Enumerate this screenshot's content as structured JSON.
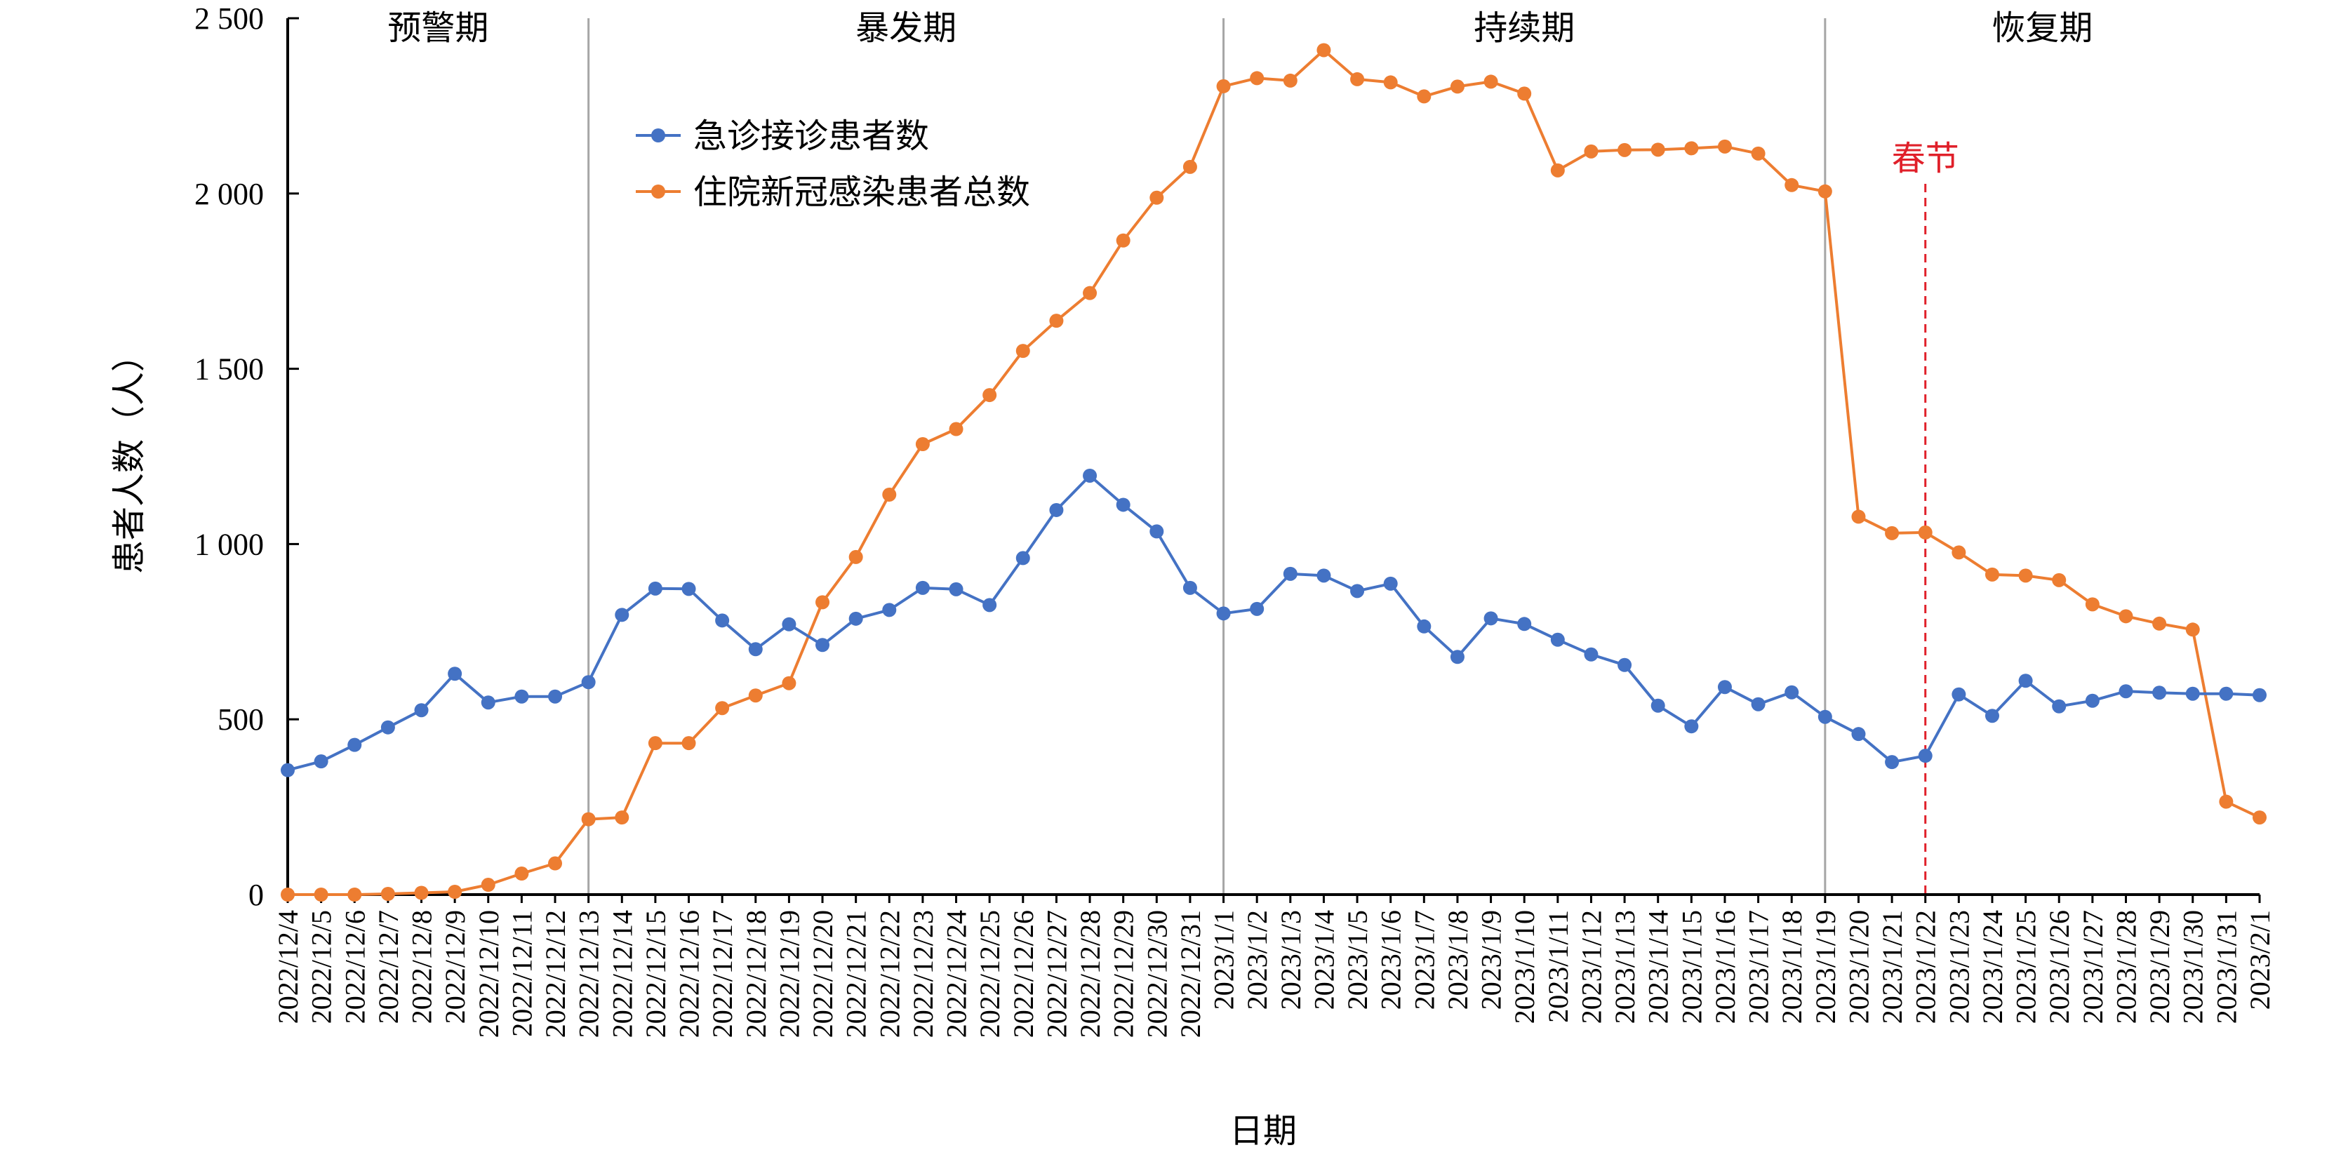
{
  "chart_data": {
    "type": "line",
    "xlabel": "日期",
    "ylabel": "患者人数（人）",
    "ylim": [
      0,
      2500
    ],
    "yticks": [
      0,
      500,
      1000,
      1500,
      2000,
      2500
    ],
    "ytick_labels": [
      "0",
      "500",
      "1 000",
      "1 500",
      "2 000",
      "2 500"
    ],
    "grid": false,
    "legend_position": "upper-left, inside plot",
    "categories": [
      "2022/12/4",
      "2022/12/5",
      "2022/12/6",
      "2022/12/7",
      "2022/12/8",
      "2022/12/9",
      "2022/12/10",
      "2022/12/11",
      "2022/12/12",
      "2022/12/13",
      "2022/12/14",
      "2022/12/15",
      "2022/12/16",
      "2022/12/17",
      "2022/12/18",
      "2022/12/19",
      "2022/12/20",
      "2022/12/21",
      "2022/12/22",
      "2022/12/23",
      "2022/12/24",
      "2022/12/25",
      "2022/12/26",
      "2022/12/27",
      "2022/12/28",
      "2022/12/29",
      "2022/12/30",
      "2022/12/31",
      "2023/1/1",
      "2023/1/2",
      "2023/1/3",
      "2023/1/4",
      "2023/1/5",
      "2023/1/6",
      "2023/1/7",
      "2023/1/8",
      "2023/1/9",
      "2023/1/10",
      "2023/1/11",
      "2023/1/12",
      "2023/1/13",
      "2023/1/14",
      "2023/1/15",
      "2023/1/16",
      "2023/1/17",
      "2023/1/18",
      "2023/1/19",
      "2023/1/20",
      "2023/1/21",
      "2023/1/22",
      "2023/1/23",
      "2023/1/24",
      "2023/1/25",
      "2023/1/26",
      "2023/1/27",
      "2023/1/28",
      "2023/1/29",
      "2023/1/30",
      "2023/1/31",
      "2023/2/1"
    ],
    "series": [
      {
        "name": "急诊接诊患者数",
        "color": "#4472c4",
        "values": [
          355,
          380,
          427,
          477,
          526,
          630,
          548,
          565,
          565,
          606,
          798,
          873,
          872,
          782,
          700,
          771,
          712,
          787,
          812,
          875,
          871,
          826,
          960,
          1097,
          1195,
          1112,
          1036,
          875,
          802,
          815,
          915,
          910,
          866,
          887,
          765,
          678,
          788,
          772,
          727,
          685,
          655,
          539,
          480,
          592,
          543,
          577,
          507,
          458,
          378,
          396,
          571,
          510,
          610,
          537,
          553,
          580,
          576,
          573,
          573,
          569
        ]
      },
      {
        "name": "住院新冠感染患者总数",
        "color": "#ed7d31",
        "values": [
          0,
          0,
          0,
          2,
          5,
          8,
          28,
          60,
          89,
          215,
          220,
          432,
          432,
          532,
          568,
          603,
          834,
          963,
          1141,
          1285,
          1328,
          1425,
          1551,
          1637,
          1716,
          1866,
          1988,
          2076,
          2306,
          2329,
          2322,
          2409,
          2326,
          2317,
          2277,
          2305,
          2319,
          2285,
          2066,
          2120,
          2124,
          2125,
          2129,
          2134,
          2114,
          2024,
          2006,
          1078,
          1031,
          1033,
          976,
          913,
          910,
          897,
          828,
          794,
          773,
          756,
          265,
          220
        ]
      }
    ],
    "phases": [
      {
        "label": "预警期",
        "start": "2022/12/4",
        "end": "2022/12/13"
      },
      {
        "label": "暴发期",
        "start": "2022/12/13",
        "end": "2023/1/1"
      },
      {
        "label": "持续期",
        "start": "2023/1/1",
        "end": "2023/1/19"
      },
      {
        "label": "恢复期",
        "start": "2023/1/19",
        "end": "2023/2/1"
      }
    ],
    "annotations": [
      {
        "label": "春节",
        "x": "2023/1/22",
        "color": "#e0202a",
        "style": "dashed-vertical-line"
      }
    ]
  }
}
